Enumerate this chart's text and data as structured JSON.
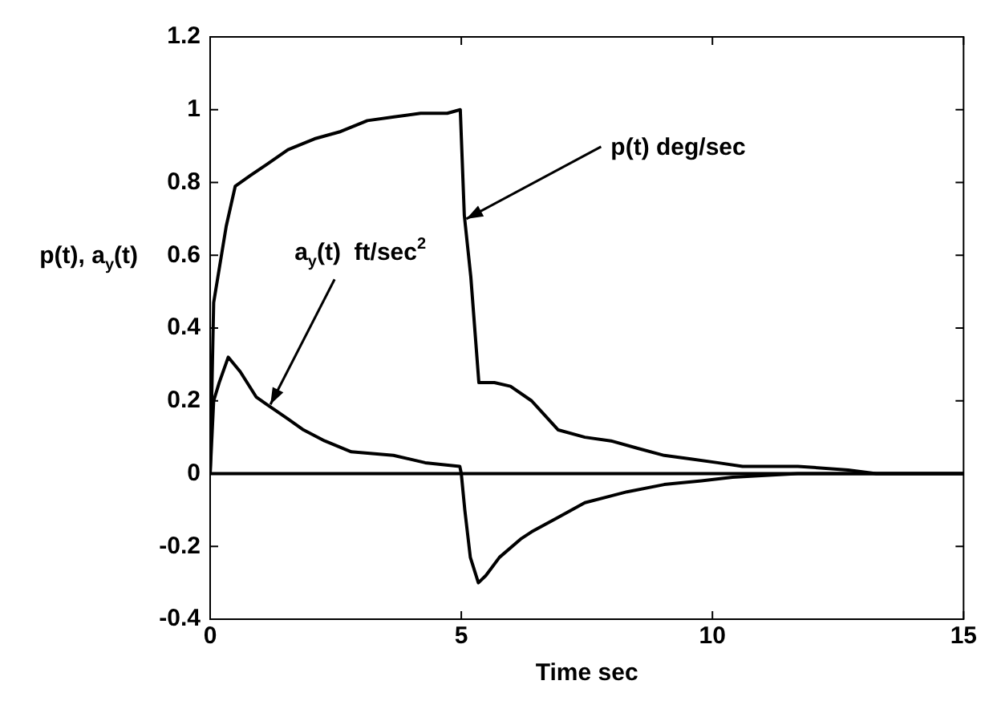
{
  "chart_data": {
    "type": "line",
    "xlabel": "Time sec",
    "ylabel": "p(t), a$_{y}$(t)",
    "xlim": [
      0,
      15
    ],
    "xticks": [
      0,
      5,
      10,
      15
    ],
    "ylim": [
      -0.4,
      1.2
    ],
    "yticks": [
      -0.4,
      -0.2,
      0,
      0.2,
      0.4,
      0.6,
      0.8,
      1,
      1.2
    ],
    "grid": false,
    "legend": false,
    "marker": "none",
    "line_style": "solid",
    "ref_lines": [
      {
        "axis": "y",
        "value": 0,
        "color": "#000000"
      }
    ],
    "annotations": [
      {
        "text": "p(t) deg/sec",
        "x": 5.1,
        "y": 0.7
      },
      {
        "text": "a$_{y}$(t)  ft/sec$^{2}$",
        "x": 1.2,
        "y": 0.19
      }
    ],
    "series": [
      {
        "color": "#000000",
        "x": [
          0,
          0.07,
          0.32,
          0.5,
          0.81,
          1.13,
          1.55,
          2.08,
          2.6,
          3.13,
          3.66,
          4.19,
          4.72,
          4.98,
          5.06,
          5.19,
          5.35,
          5.66,
          5.98,
          6.4,
          6.93,
          7.46,
          7.98,
          8.5,
          9.04,
          9.57,
          10.1,
          10.6,
          11.7,
          12.7,
          13.26,
          15
        ],
        "values": [
          0,
          0.47,
          0.68,
          0.79,
          0.82,
          0.85,
          0.89,
          0.92,
          0.94,
          0.97,
          0.98,
          0.99,
          0.99,
          1,
          0.71,
          0.54,
          0.25,
          0.25,
          0.24,
          0.2,
          0.12,
          0.1,
          0.09,
          0.07,
          0.05,
          0.04,
          0.03,
          0.02,
          0.02,
          0.01,
          0,
          0
        ]
      },
      {
        "color": "#000000",
        "x": [
          0,
          0.07,
          0.18,
          0.36,
          0.6,
          0.92,
          1.13,
          1.55,
          1.86,
          2.28,
          2.81,
          3.65,
          4.28,
          4.97,
          5.0,
          5.07,
          5.18,
          5.34,
          5.49,
          5.76,
          6.18,
          6.4,
          6.93,
          7.46,
          8.3,
          9.04,
          9.78,
          10.4,
          11.7,
          15
        ],
        "values": [
          0,
          0.2,
          0.25,
          0.32,
          0.28,
          0.21,
          0.19,
          0.15,
          0.12,
          0.09,
          0.06,
          0.05,
          0.03,
          0.02,
          0,
          -0.1,
          -0.23,
          -0.3,
          -0.28,
          -0.23,
          -0.18,
          -0.16,
          -0.12,
          -0.08,
          -0.05,
          -0.03,
          -0.02,
          -0.01,
          0,
          0
        ]
      }
    ]
  }
}
